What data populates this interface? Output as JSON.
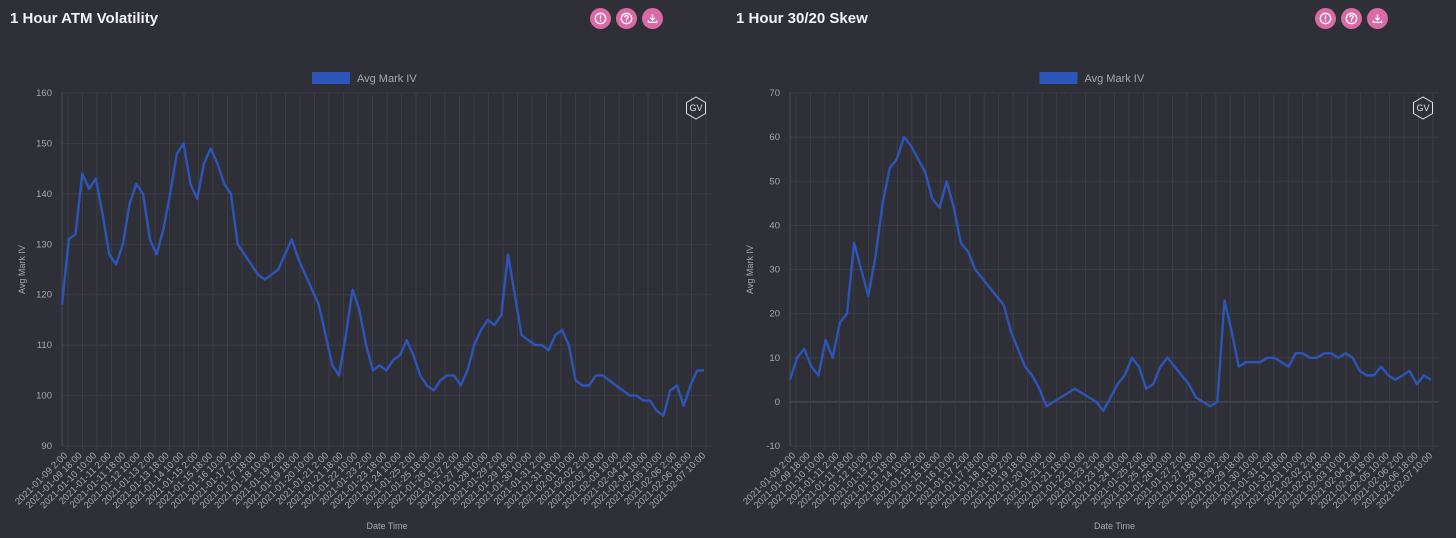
{
  "panels": [
    {
      "title": "1 Hour ATM Volatility",
      "icons": [
        "info-icon",
        "help-icon",
        "download-icon"
      ],
      "badge": "GV",
      "chart_data": {
        "type": "line",
        "xlabel": "Date Time",
        "ylabel": "Avg Mark IV",
        "ylim": [
          90,
          160
        ],
        "yticks": [
          90,
          100,
          110,
          120,
          130,
          140,
          150,
          160
        ],
        "grid": true,
        "legend_position": "top-center",
        "color": "#2d55b8",
        "x_tick_labels": [
          "2021-01-09 2:00",
          "2021-01-09 18:00",
          "2021-01-10 10:00",
          "2021-01-11 2:00",
          "2021-01-11 18:00",
          "2021-01-12 10:00",
          "2021-01-13 2:00",
          "2021-01-13 18:00",
          "2021-01-14 10:00",
          "2021-01-15 2:00",
          "2021-01-15 18:00",
          "2021-01-16 10:00",
          "2021-01-17 2:00",
          "2021-01-17 18:00",
          "2021-01-18 10:00",
          "2021-01-19 2:00",
          "2021-01-19 18:00",
          "2021-01-20 10:00",
          "2021-01-21 2:00",
          "2021-01-21 18:00",
          "2021-01-22 10:00",
          "2021-01-23 2:00",
          "2021-01-23 18:00",
          "2021-01-24 10:00",
          "2021-01-25 2:00",
          "2021-01-25 18:00",
          "2021-01-26 10:00",
          "2021-01-27 2:00",
          "2021-01-27 18:00",
          "2021-01-28 10:00",
          "2021-01-29 2:00",
          "2021-01-29 18:00",
          "2021-01-30 10:00",
          "2021-01-31 2:00",
          "2021-01-31 18:00",
          "2021-02-01 10:00",
          "2021-02-02 2:00",
          "2021-02-02 18:00",
          "2021-02-03 10:00",
          "2021-02-04 2:00",
          "2021-02-04 18:00",
          "2021-02-05 10:00",
          "2021-02-06 2:00",
          "2021-02-06 18:00",
          "2021-02-07 10:00"
        ],
        "series": [
          {
            "name": "Avg Mark IV",
            "values": [
              118,
              131,
              132,
              144,
              141,
              143,
              136,
              128,
              126,
              130,
              138,
              142,
              140,
              131,
              128,
              133,
              140,
              148,
              150,
              142,
              139,
              146,
              149,
              146,
              142,
              140,
              130,
              128,
              126,
              124,
              123,
              124,
              125,
              128,
              131,
              127,
              124,
              121,
              118,
              112,
              106,
              104,
              112,
              121,
              117,
              110,
              105,
              106,
              105,
              107,
              108,
              111,
              108,
              104,
              102,
              101,
              103,
              104,
              104,
              102,
              105,
              110,
              113,
              115,
              114,
              116,
              128,
              120,
              112,
              111,
              110,
              110,
              109,
              112,
              113,
              110,
              103,
              102,
              102,
              104,
              104,
              103,
              102,
              101,
              100,
              100,
              99,
              99,
              97,
              96,
              101,
              102,
              98,
              102,
              105,
              105
            ]
          }
        ]
      }
    },
    {
      "title": "1 Hour 30/20 Skew",
      "icons": [
        "info-icon",
        "help-icon",
        "download-icon"
      ],
      "badge": "GV",
      "chart_data": {
        "type": "line",
        "xlabel": "Date Time",
        "ylabel": "Avg Mark IV",
        "ylim": [
          -10,
          70
        ],
        "yticks": [
          -10,
          0,
          10,
          20,
          30,
          40,
          50,
          60,
          70
        ],
        "grid": true,
        "legend_position": "top-center",
        "color": "#2d55b8",
        "x_tick_labels": [
          "2021-01-09 2:00",
          "2021-01-09 18:00",
          "2021-01-10 10:00",
          "2021-01-11 2:00",
          "2021-01-11 18:00",
          "2021-01-12 10:00",
          "2021-01-13 2:00",
          "2021-01-13 18:00",
          "2021-01-14 10:00",
          "2021-01-15 2:00",
          "2021-01-15 18:00",
          "2021-01-16 10:00",
          "2021-01-17 2:00",
          "2021-01-17 18:00",
          "2021-01-18 10:00",
          "2021-01-19 2:00",
          "2021-01-19 18:00",
          "2021-01-20 10:00",
          "2021-01-21 2:00",
          "2021-01-21 18:00",
          "2021-01-22 10:00",
          "2021-01-23 2:00",
          "2021-01-23 18:00",
          "2021-01-24 10:00",
          "2021-01-25 2:00",
          "2021-01-25 18:00",
          "2021-01-26 10:00",
          "2021-01-27 2:00",
          "2021-01-27 18:00",
          "2021-01-28 10:00",
          "2021-01-29 2:00",
          "2021-01-29 18:00",
          "2021-01-30 10:00",
          "2021-01-31 2:00",
          "2021-01-31 18:00",
          "2021-02-01 10:00",
          "2021-02-02 2:00",
          "2021-02-02 18:00",
          "2021-02-03 10:00",
          "2021-02-04 2:00",
          "2021-02-04 18:00",
          "2021-02-05 10:00",
          "2021-02-06 2:00",
          "2021-02-06 18:00",
          "2021-02-07 10:00"
        ],
        "series": [
          {
            "name": "Avg Mark IV",
            "values": [
              5,
              10,
              12,
              8,
              6,
              14,
              10,
              18,
              20,
              36,
              30,
              24,
              33,
              45,
              53,
              55,
              60,
              58,
              55,
              52,
              46,
              44,
              50,
              44,
              36,
              34,
              30,
              28,
              26,
              24,
              22,
              16,
              12,
              8,
              6,
              3,
              -1,
              0,
              1,
              2,
              3,
              2,
              1,
              0,
              -2,
              1,
              4,
              6,
              10,
              8,
              3,
              4,
              8,
              10,
              8,
              6,
              4,
              1,
              0,
              -1,
              0,
              23,
              16,
              8,
              9,
              9,
              9,
              10,
              10,
              9,
              8,
              11,
              11,
              10,
              10,
              11,
              11,
              10,
              11,
              10,
              7,
              6,
              6,
              8,
              6,
              5,
              6,
              7,
              4,
              6,
              5
            ]
          }
        ]
      }
    }
  ]
}
